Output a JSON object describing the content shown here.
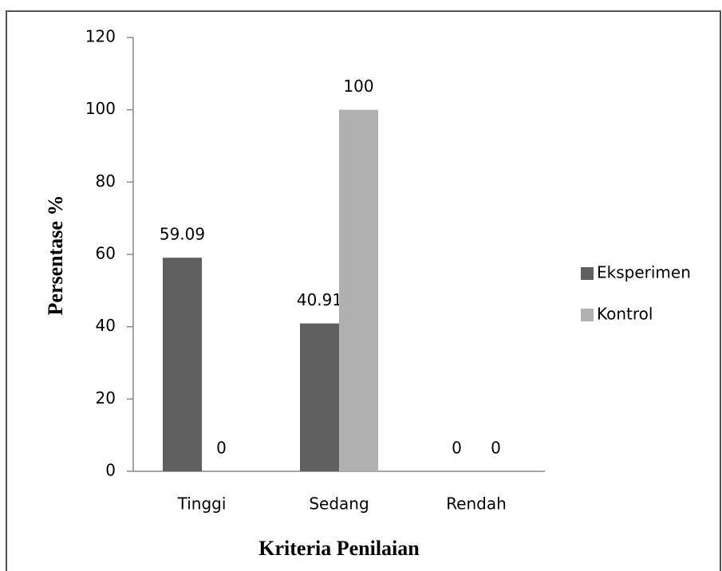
{
  "chart_data": {
    "type": "bar",
    "xlabel": "Kriteria Penilaian",
    "ylabel": "Persentase %",
    "categories": [
      "Tinggi",
      "Sedang",
      "Rendah"
    ],
    "series": [
      {
        "name": "Eksperimen",
        "color": "#606060",
        "values": [
          59.09,
          40.91,
          0
        ]
      },
      {
        "name": "Kontrol",
        "color": "#b0b0b0",
        "values": [
          0,
          100,
          0
        ]
      }
    ],
    "ylim": [
      0,
      120
    ],
    "yticks": [
      0,
      20,
      40,
      60,
      80,
      100,
      120
    ],
    "grid": false,
    "legend": "right"
  }
}
